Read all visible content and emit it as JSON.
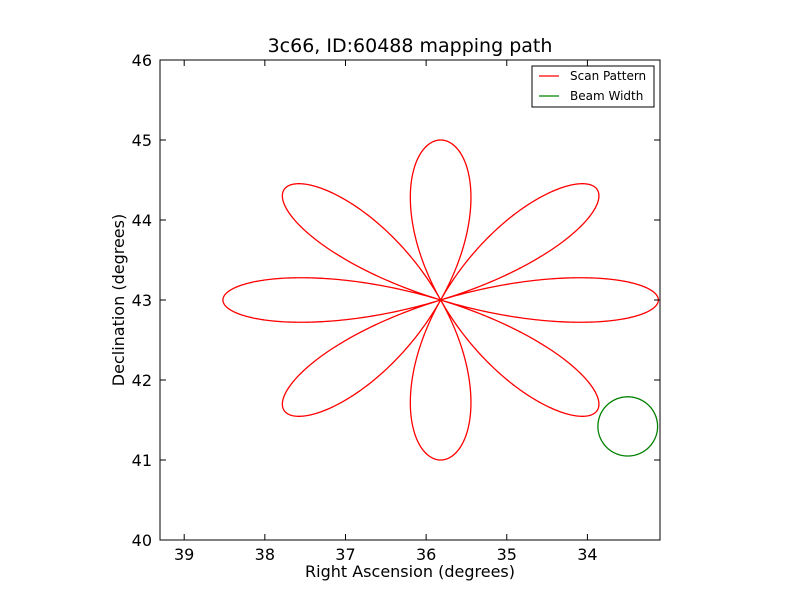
{
  "chart_data": {
    "type": "line",
    "title": "3c66, ID:60488 mapping path",
    "xlabel": "Right Ascension (degrees)",
    "ylabel": "Declination (degrees)",
    "xlim": [
      39.3,
      33.1
    ],
    "ylim": [
      40,
      46
    ],
    "x_inverted": true,
    "xticks": [
      39,
      38,
      37,
      36,
      35,
      34
    ],
    "yticks": [
      40,
      41,
      42,
      43,
      44,
      45,
      46
    ],
    "legend_position": "top-right",
    "grid": false,
    "series": [
      {
        "name": "Scan Pattern",
        "color": "#ff0000",
        "kind": "rose",
        "center": [
          35.82,
          43.0
        ],
        "petals": 8,
        "radius_ra": 2.7,
        "radius_dec": 2.0,
        "petal_half_width_rad": 0.34
      },
      {
        "name": "Beam Width",
        "color": "#008000",
        "kind": "circle",
        "center": [
          33.5,
          41.42
        ],
        "radius_ra": 0.37,
        "radius_dec": 0.37
      }
    ]
  }
}
